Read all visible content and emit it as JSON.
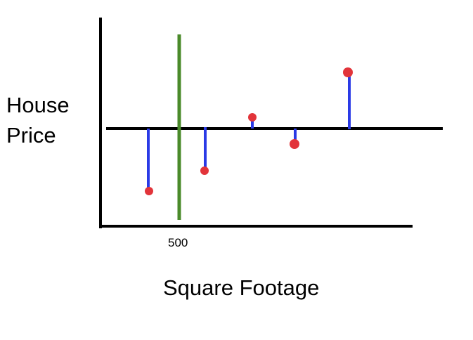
{
  "diagram": {
    "y_axis_label_lines": [
      "House",
      "Price"
    ],
    "x_axis_label": "Square Footage",
    "marked_x_value": "500",
    "colors": {
      "axes": "#000000",
      "mean_line": "#000000",
      "split_line": "#4a8a2a",
      "residual": "#2a3ae6",
      "point": "#e2343a"
    },
    "points": [
      {
        "name": "point-1",
        "above_line": false
      },
      {
        "name": "point-2",
        "above_line": false
      },
      {
        "name": "point-3",
        "above_line": true
      },
      {
        "name": "point-4",
        "above_line": false
      },
      {
        "name": "point-5",
        "above_line": true
      }
    ]
  }
}
